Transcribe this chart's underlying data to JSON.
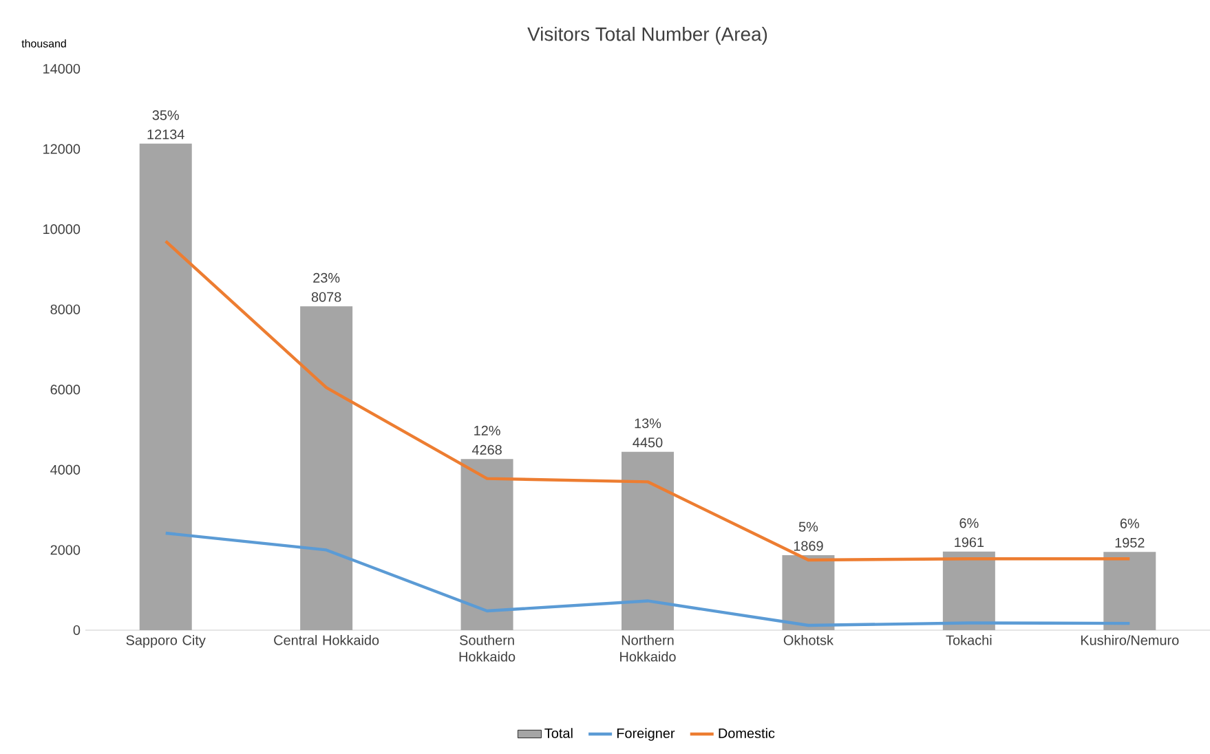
{
  "chart_data": {
    "type": "bar",
    "title": "Visitors Total Number (Area)",
    "ylabel": "thousand",
    "categories": [
      "Sapporo City",
      "Central Hokkaido",
      "Southern Hokkaido",
      "Northern Hokkaido",
      "Okhotsk",
      "Tokachi",
      "Kushiro/Nemuro"
    ],
    "series": [
      {
        "name": "Total",
        "color": "#a5a5a5",
        "values": [
          12134,
          8078,
          4268,
          4450,
          1869,
          1961,
          1952
        ],
        "value_labels": [
          "35% 12134",
          "23% 8078",
          "12% 4268",
          "13% 4450",
          "5% 1869",
          "6% 1961",
          "6% 1952"
        ]
      },
      {
        "name": "Foreigner",
        "type": "line",
        "color": "#5b9bd5",
        "values": [
          2420,
          2000,
          480,
          730,
          120,
          180,
          170
        ]
      },
      {
        "name": "Domestic",
        "type": "line",
        "color": "#ed7d31",
        "values": [
          9700,
          6050,
          3780,
          3700,
          1750,
          1780,
          1780
        ]
      }
    ],
    "ylim": [
      0,
      14000
    ],
    "yticks": [
      0,
      2000,
      4000,
      6000,
      8000,
      10000,
      12000,
      14000
    ],
    "grid": false,
    "legend": "bottom",
    "marker": "none",
    "line_style": "solid"
  }
}
